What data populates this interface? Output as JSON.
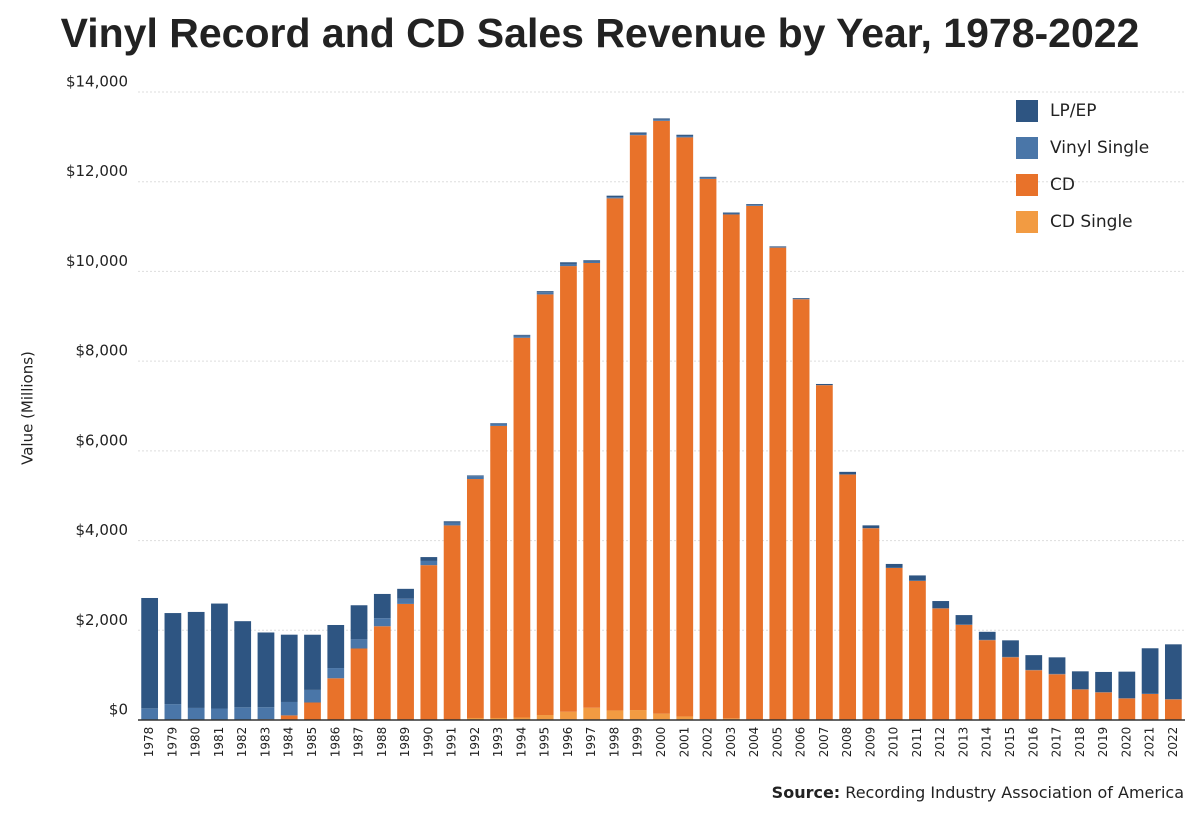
{
  "chart_data": {
    "type": "stacked_bar",
    "title": "Vinyl Record and CD Sales Revenue by Year, 1978-2022",
    "y_label": "Value (Millions)",
    "source_label": "Source:",
    "source_text": "Recording Industry Association of America",
    "categories": [
      "1978",
      "1979",
      "1980",
      "1981",
      "1982",
      "1983",
      "1984",
      "1985",
      "1986",
      "1987",
      "1988",
      "1989",
      "1990",
      "1991",
      "1992",
      "1993",
      "1994",
      "1995",
      "1996",
      "1997",
      "1998",
      "1999",
      "2000",
      "2001",
      "2002",
      "2003",
      "2004",
      "2005",
      "2006",
      "2007",
      "2008",
      "2009",
      "2010",
      "2011",
      "2012",
      "2013",
      "2014",
      "2015",
      "2016",
      "2017",
      "2018",
      "2019",
      "2020",
      "2021",
      "2022"
    ],
    "series": [
      {
        "name": "CD Single",
        "color": "#f29b42",
        "values": [
          0,
          0,
          0,
          0,
          0,
          0,
          0,
          0,
          0,
          0,
          0,
          0,
          0,
          0,
          45,
          45,
          56,
          111,
          184,
          273,
          213,
          222,
          142,
          79,
          19,
          36,
          15,
          11,
          7,
          12,
          1,
          1,
          0,
          0,
          0,
          0,
          0,
          0,
          0,
          0,
          0,
          0,
          0,
          0,
          0
        ]
      },
      {
        "name": "CD",
        "color": "#e8722a",
        "values": [
          0,
          0,
          0,
          0,
          0,
          17,
          103,
          390,
          930,
          1594,
          2090,
          2588,
          3452,
          4338,
          5327,
          6511,
          8465,
          9377,
          9935,
          9915,
          11416,
          12816,
          13215,
          12909,
          12044,
          11233,
          11447,
          10520,
          9373,
          7452,
          5471,
          4274,
          3390,
          3101,
          2486,
          2123,
          1780,
          1400,
          1110,
          1020,
          680,
          615,
          480,
          580,
          460
        ]
      },
      {
        "name": "Vinyl Single",
        "color": "#4a76a8",
        "values": [
          260,
          354,
          269,
          256,
          283,
          269,
          299,
          281,
          228,
          204,
          180,
          116,
          94,
          63,
          66,
          51,
          47,
          47,
          48,
          28,
          26,
          28,
          26,
          32,
          25,
          22,
          20,
          13,
          11,
          4,
          3,
          3,
          2,
          5,
          6,
          6,
          6,
          6,
          6,
          7,
          5,
          6,
          8,
          9,
          7
        ]
      },
      {
        "name": "LP/EP",
        "color": "#2e5582",
        "values": [
          2460,
          2030,
          2140,
          2340,
          1920,
          1665,
          1500,
          1230,
          960,
          760,
          540,
          220,
          86,
          29,
          14,
          11,
          18,
          25,
          37,
          33,
          34,
          32,
          28,
          27,
          21,
          22,
          19,
          14,
          16,
          23,
          57,
          61,
          87,
          117,
          160,
          210,
          180,
          370,
          330,
          370,
          400,
          450,
          590,
          1010,
          1220
        ]
      }
    ],
    "ylim": [
      0,
      14000
    ],
    "yticks": [
      {
        "value": 0,
        "label": "$0"
      },
      {
        "value": 2000,
        "label": "$2,000"
      },
      {
        "value": 4000,
        "label": "$4,000"
      },
      {
        "value": 6000,
        "label": "$6,000"
      },
      {
        "value": 8000,
        "label": "$8,000"
      },
      {
        "value": 10000,
        "label": "$10,000"
      },
      {
        "value": 12000,
        "label": "$12,000"
      },
      {
        "value": 14000,
        "label": "$14,000"
      }
    ],
    "grid": true,
    "legend": "top-right"
  }
}
